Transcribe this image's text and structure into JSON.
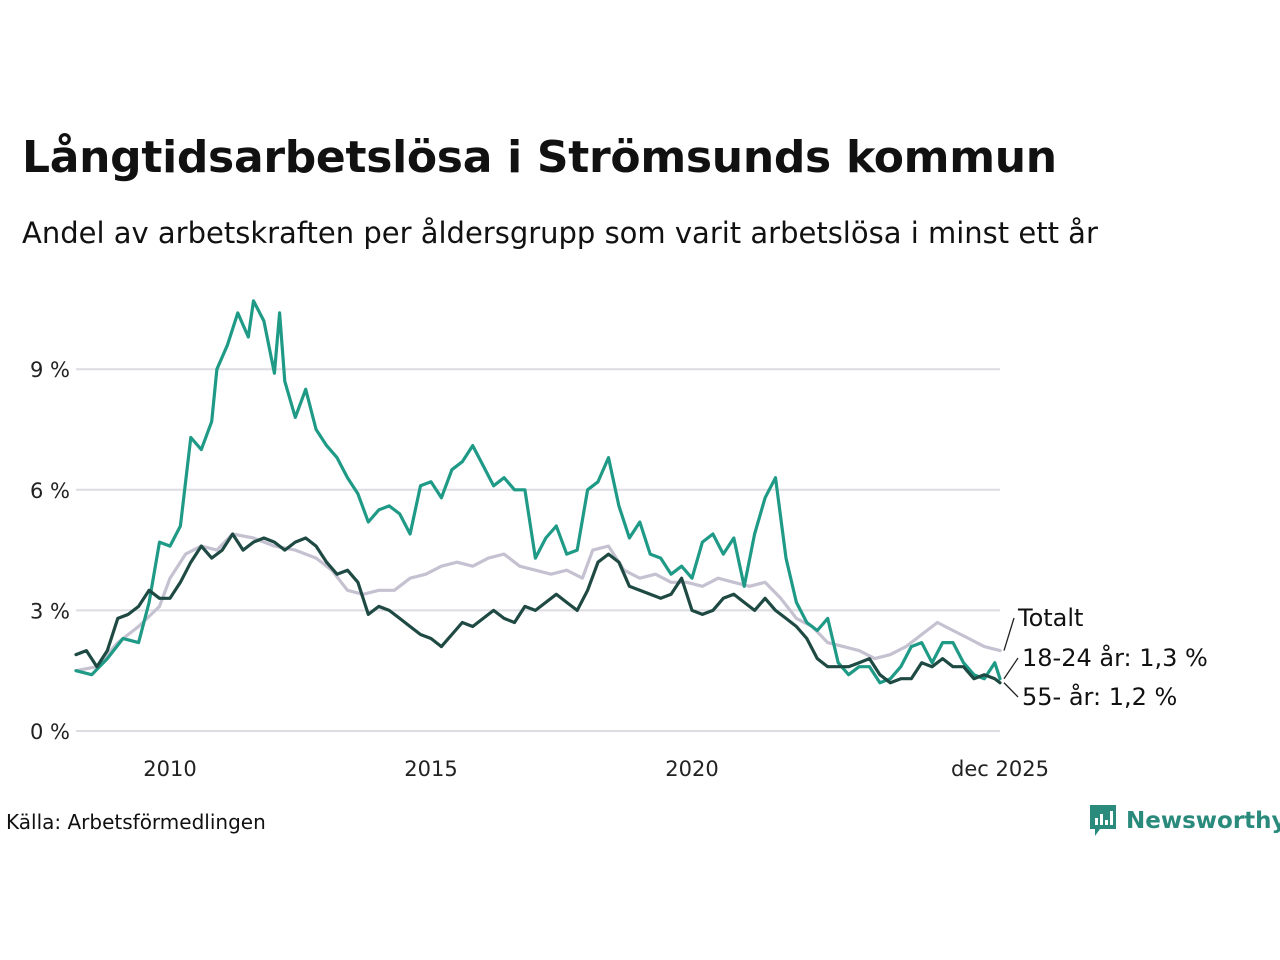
{
  "title": "Långtidsarbetslösa i Strömsunds kommun",
  "subtitle": "Andel av arbetskraften per åldersgrupp som varit arbetslösa i minst ett år",
  "source": "Källa: Arbetsförmedlingen",
  "brand": "Newsworthy",
  "colors": {
    "total": "#c5c1d1",
    "young": "#1f9a86",
    "old": "#1f4a44",
    "grid": "#dcdce2",
    "brand": "#2a8a7c"
  },
  "chart_data": {
    "type": "line",
    "ylim": [
      0,
      10.5
    ],
    "yticks": [
      0,
      3,
      6,
      9
    ],
    "ytick_labels": [
      "0 %",
      "3 %",
      "6 %",
      "9 %"
    ],
    "xlim": [
      2008.2,
      2025.9
    ],
    "xticks": [
      2010,
      2015,
      2020,
      2025.9
    ],
    "xtick_labels": [
      "2010",
      "2015",
      "2020",
      "dec 2025"
    ],
    "series": [
      {
        "name": "Totalt",
        "label": "Totalt",
        "key": "total",
        "points": [
          [
            2008.2,
            1.5
          ],
          [
            2008.6,
            1.6
          ],
          [
            2009.0,
            2.2
          ],
          [
            2009.4,
            2.6
          ],
          [
            2009.8,
            3.1
          ],
          [
            2010.0,
            3.8
          ],
          [
            2010.3,
            4.4
          ],
          [
            2010.6,
            4.6
          ],
          [
            2010.9,
            4.5
          ],
          [
            2011.2,
            4.9
          ],
          [
            2011.6,
            4.8
          ],
          [
            2012.0,
            4.6
          ],
          [
            2012.4,
            4.5
          ],
          [
            2012.8,
            4.3
          ],
          [
            2013.1,
            4.0
          ],
          [
            2013.4,
            3.5
          ],
          [
            2013.7,
            3.4
          ],
          [
            2014.0,
            3.5
          ],
          [
            2014.3,
            3.5
          ],
          [
            2014.6,
            3.8
          ],
          [
            2014.9,
            3.9
          ],
          [
            2015.2,
            4.1
          ],
          [
            2015.5,
            4.2
          ],
          [
            2015.8,
            4.1
          ],
          [
            2016.1,
            4.3
          ],
          [
            2016.4,
            4.4
          ],
          [
            2016.7,
            4.1
          ],
          [
            2017.0,
            4.0
          ],
          [
            2017.3,
            3.9
          ],
          [
            2017.6,
            4.0
          ],
          [
            2017.9,
            3.8
          ],
          [
            2018.1,
            4.5
          ],
          [
            2018.4,
            4.6
          ],
          [
            2018.7,
            4.0
          ],
          [
            2019.0,
            3.8
          ],
          [
            2019.3,
            3.9
          ],
          [
            2019.6,
            3.7
          ],
          [
            2019.9,
            3.7
          ],
          [
            2020.2,
            3.6
          ],
          [
            2020.5,
            3.8
          ],
          [
            2020.8,
            3.7
          ],
          [
            2021.1,
            3.6
          ],
          [
            2021.4,
            3.7
          ],
          [
            2021.7,
            3.3
          ],
          [
            2022.0,
            2.8
          ],
          [
            2022.3,
            2.6
          ],
          [
            2022.6,
            2.2
          ],
          [
            2022.9,
            2.1
          ],
          [
            2023.2,
            2.0
          ],
          [
            2023.5,
            1.8
          ],
          [
            2023.8,
            1.9
          ],
          [
            2024.1,
            2.1
          ],
          [
            2024.4,
            2.4
          ],
          [
            2024.7,
            2.7
          ],
          [
            2025.0,
            2.5
          ],
          [
            2025.3,
            2.3
          ],
          [
            2025.6,
            2.1
          ],
          [
            2025.9,
            2.0
          ]
        ]
      },
      {
        "name": "18-24 år",
        "label": "18-24 år: 1,3 %",
        "key": "young",
        "points": [
          [
            2008.2,
            1.5
          ],
          [
            2008.5,
            1.4
          ],
          [
            2008.8,
            1.8
          ],
          [
            2009.1,
            2.3
          ],
          [
            2009.4,
            2.2
          ],
          [
            2009.6,
            3.2
          ],
          [
            2009.8,
            4.7
          ],
          [
            2010.0,
            4.6
          ],
          [
            2010.2,
            5.1
          ],
          [
            2010.4,
            7.3
          ],
          [
            2010.6,
            7.0
          ],
          [
            2010.8,
            7.7
          ],
          [
            2010.9,
            9.0
          ],
          [
            2011.1,
            9.6
          ],
          [
            2011.3,
            10.4
          ],
          [
            2011.5,
            9.8
          ],
          [
            2011.6,
            10.7
          ],
          [
            2011.8,
            10.2
          ],
          [
            2012.0,
            8.9
          ],
          [
            2012.1,
            10.4
          ],
          [
            2012.2,
            8.7
          ],
          [
            2012.4,
            7.8
          ],
          [
            2012.6,
            8.5
          ],
          [
            2012.8,
            7.5
          ],
          [
            2013.0,
            7.1
          ],
          [
            2013.2,
            6.8
          ],
          [
            2013.4,
            6.3
          ],
          [
            2013.6,
            5.9
          ],
          [
            2013.8,
            5.2
          ],
          [
            2014.0,
            5.5
          ],
          [
            2014.2,
            5.6
          ],
          [
            2014.4,
            5.4
          ],
          [
            2014.6,
            4.9
          ],
          [
            2014.8,
            6.1
          ],
          [
            2015.0,
            6.2
          ],
          [
            2015.2,
            5.8
          ],
          [
            2015.4,
            6.5
          ],
          [
            2015.6,
            6.7
          ],
          [
            2015.8,
            7.1
          ],
          [
            2016.0,
            6.6
          ],
          [
            2016.2,
            6.1
          ],
          [
            2016.4,
            6.3
          ],
          [
            2016.6,
            6.0
          ],
          [
            2016.8,
            6.0
          ],
          [
            2017.0,
            4.3
          ],
          [
            2017.2,
            4.8
          ],
          [
            2017.4,
            5.1
          ],
          [
            2017.6,
            4.4
          ],
          [
            2017.8,
            4.5
          ],
          [
            2018.0,
            6.0
          ],
          [
            2018.2,
            6.2
          ],
          [
            2018.4,
            6.8
          ],
          [
            2018.6,
            5.6
          ],
          [
            2018.8,
            4.8
          ],
          [
            2019.0,
            5.2
          ],
          [
            2019.2,
            4.4
          ],
          [
            2019.4,
            4.3
          ],
          [
            2019.6,
            3.9
          ],
          [
            2019.8,
            4.1
          ],
          [
            2020.0,
            3.8
          ],
          [
            2020.2,
            4.7
          ],
          [
            2020.4,
            4.9
          ],
          [
            2020.6,
            4.4
          ],
          [
            2020.8,
            4.8
          ],
          [
            2021.0,
            3.6
          ],
          [
            2021.2,
            4.9
          ],
          [
            2021.4,
            5.8
          ],
          [
            2021.6,
            6.3
          ],
          [
            2021.8,
            4.3
          ],
          [
            2022.0,
            3.2
          ],
          [
            2022.2,
            2.7
          ],
          [
            2022.4,
            2.5
          ],
          [
            2022.6,
            2.8
          ],
          [
            2022.8,
            1.7
          ],
          [
            2023.0,
            1.4
          ],
          [
            2023.2,
            1.6
          ],
          [
            2023.4,
            1.6
          ],
          [
            2023.6,
            1.2
          ],
          [
            2023.8,
            1.3
          ],
          [
            2024.0,
            1.6
          ],
          [
            2024.2,
            2.1
          ],
          [
            2024.4,
            2.2
          ],
          [
            2024.6,
            1.7
          ],
          [
            2024.8,
            2.2
          ],
          [
            2025.0,
            2.2
          ],
          [
            2025.2,
            1.7
          ],
          [
            2025.4,
            1.4
          ],
          [
            2025.6,
            1.3
          ],
          [
            2025.8,
            1.7
          ],
          [
            2025.9,
            1.3
          ]
        ]
      },
      {
        "name": "55- år",
        "label": "55- år: 1,2 %",
        "key": "old",
        "points": [
          [
            2008.2,
            1.9
          ],
          [
            2008.4,
            2.0
          ],
          [
            2008.6,
            1.6
          ],
          [
            2008.8,
            2.0
          ],
          [
            2009.0,
            2.8
          ],
          [
            2009.2,
            2.9
          ],
          [
            2009.4,
            3.1
          ],
          [
            2009.6,
            3.5
          ],
          [
            2009.8,
            3.3
          ],
          [
            2010.0,
            3.3
          ],
          [
            2010.2,
            3.7
          ],
          [
            2010.4,
            4.2
          ],
          [
            2010.6,
            4.6
          ],
          [
            2010.8,
            4.3
          ],
          [
            2011.0,
            4.5
          ],
          [
            2011.2,
            4.9
          ],
          [
            2011.4,
            4.5
          ],
          [
            2011.6,
            4.7
          ],
          [
            2011.8,
            4.8
          ],
          [
            2012.0,
            4.7
          ],
          [
            2012.2,
            4.5
          ],
          [
            2012.4,
            4.7
          ],
          [
            2012.6,
            4.8
          ],
          [
            2012.8,
            4.6
          ],
          [
            2013.0,
            4.2
          ],
          [
            2013.2,
            3.9
          ],
          [
            2013.4,
            4.0
          ],
          [
            2013.6,
            3.7
          ],
          [
            2013.8,
            2.9
          ],
          [
            2014.0,
            3.1
          ],
          [
            2014.2,
            3.0
          ],
          [
            2014.4,
            2.8
          ],
          [
            2014.6,
            2.6
          ],
          [
            2014.8,
            2.4
          ],
          [
            2015.0,
            2.3
          ],
          [
            2015.2,
            2.1
          ],
          [
            2015.4,
            2.4
          ],
          [
            2015.6,
            2.7
          ],
          [
            2015.8,
            2.6
          ],
          [
            2016.0,
            2.8
          ],
          [
            2016.2,
            3.0
          ],
          [
            2016.4,
            2.8
          ],
          [
            2016.6,
            2.7
          ],
          [
            2016.8,
            3.1
          ],
          [
            2017.0,
            3.0
          ],
          [
            2017.2,
            3.2
          ],
          [
            2017.4,
            3.4
          ],
          [
            2017.6,
            3.2
          ],
          [
            2017.8,
            3.0
          ],
          [
            2018.0,
            3.5
          ],
          [
            2018.2,
            4.2
          ],
          [
            2018.4,
            4.4
          ],
          [
            2018.6,
            4.2
          ],
          [
            2018.8,
            3.6
          ],
          [
            2019.0,
            3.5
          ],
          [
            2019.2,
            3.4
          ],
          [
            2019.4,
            3.3
          ],
          [
            2019.6,
            3.4
          ],
          [
            2019.8,
            3.8
          ],
          [
            2020.0,
            3.0
          ],
          [
            2020.2,
            2.9
          ],
          [
            2020.4,
            3.0
          ],
          [
            2020.6,
            3.3
          ],
          [
            2020.8,
            3.4
          ],
          [
            2021.0,
            3.2
          ],
          [
            2021.2,
            3.0
          ],
          [
            2021.4,
            3.3
          ],
          [
            2021.6,
            3.0
          ],
          [
            2021.8,
            2.8
          ],
          [
            2022.0,
            2.6
          ],
          [
            2022.2,
            2.3
          ],
          [
            2022.4,
            1.8
          ],
          [
            2022.6,
            1.6
          ],
          [
            2022.8,
            1.6
          ],
          [
            2023.0,
            1.6
          ],
          [
            2023.2,
            1.7
          ],
          [
            2023.4,
            1.8
          ],
          [
            2023.6,
            1.4
          ],
          [
            2023.8,
            1.2
          ],
          [
            2024.0,
            1.3
          ],
          [
            2024.2,
            1.3
          ],
          [
            2024.4,
            1.7
          ],
          [
            2024.6,
            1.6
          ],
          [
            2024.8,
            1.8
          ],
          [
            2025.0,
            1.6
          ],
          [
            2025.2,
            1.6
          ],
          [
            2025.4,
            1.3
          ],
          [
            2025.6,
            1.4
          ],
          [
            2025.8,
            1.3
          ],
          [
            2025.9,
            1.2
          ]
        ]
      }
    ]
  }
}
